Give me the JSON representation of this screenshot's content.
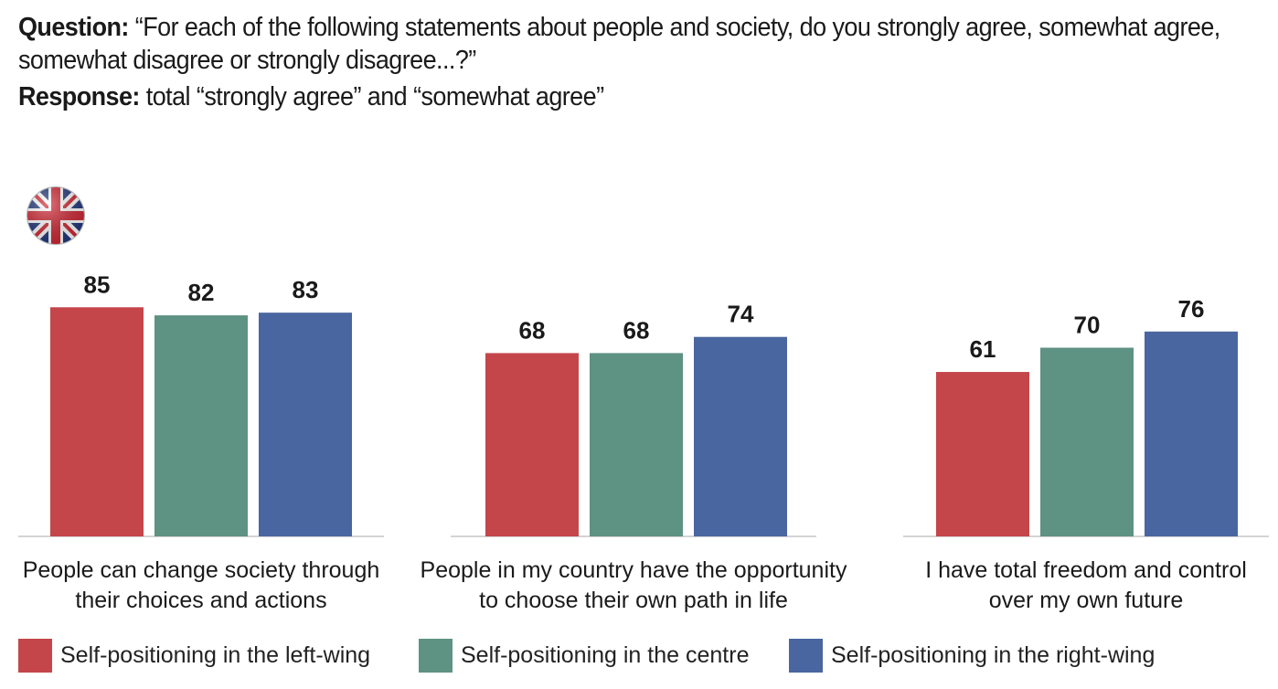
{
  "header": {
    "question_label": "Question:",
    "question_text_1": "“For each of the following statements about people and society, do you strongly agree, somewhat agree,",
    "question_text_2": "somewhat disagree or strongly disagree...?”",
    "response_label": "Response:",
    "response_text": "total “strongly agree” and “somewhat agree”"
  },
  "flag": {
    "icon": "uk-flag-icon"
  },
  "colors": {
    "left": "#c4464a",
    "centre": "#5e9282",
    "right": "#4a66a0",
    "axis": "#d4d4d4"
  },
  "chart_data": {
    "type": "bar",
    "categories": [
      [
        "People can change society through",
        "their choices and actions"
      ],
      [
        "People in my country have the opportunity",
        "to choose their own path in life"
      ],
      [
        "I have total freedom and control",
        "over my own future"
      ]
    ],
    "series": [
      {
        "name": "Self-positioning in the left-wing",
        "values": [
          85,
          68,
          61
        ]
      },
      {
        "name": "Self-positioning in the centre",
        "values": [
          82,
          68,
          70
        ]
      },
      {
        "name": "Self-positioning in the right-wing",
        "values": [
          83,
          74,
          76
        ]
      }
    ],
    "ylim": [
      0,
      100
    ],
    "legend_position": "bottom",
    "grid": false
  }
}
